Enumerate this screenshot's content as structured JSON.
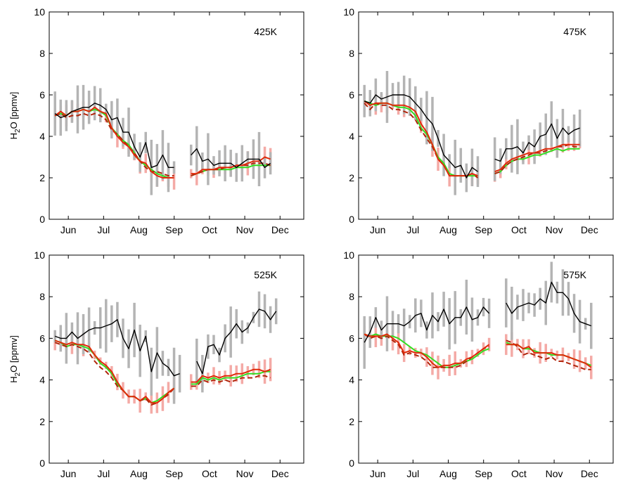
{
  "chart_data": [
    {
      "type": "line",
      "panel_label": "425K",
      "ylabel_main": "H",
      "ylabel_sub": "2",
      "ylabel_rest": "O [ppmv]",
      "x_ticks": [
        "Jun",
        "Jul",
        "Aug",
        "Sep",
        "Oct",
        "Nov",
        "Dec"
      ],
      "xlim": [
        0,
        44
      ],
      "x_tick_pos": [
        6,
        13,
        20,
        27,
        34,
        41,
        48
      ],
      "ylim": [
        0,
        10
      ],
      "y_ticks": [
        "0",
        "2",
        "4",
        "6",
        "8",
        "10"
      ],
      "grid": false,
      "colors": {
        "obs": "#000000",
        "obs_err": "#b4b4b4",
        "model_err": "#f4aaa6",
        "green": "#33dd22",
        "red": "#e02a0a",
        "dashed": "#b0240a"
      },
      "series": [
        {
          "style": "obs",
          "values": [
            5.1,
            4.9,
            5.0,
            5.2,
            5.3,
            5.4,
            5.4,
            5.6,
            5.5,
            5.3,
            4.8,
            4.9,
            4.2,
            4.2,
            3.5,
            3.0,
            3.7,
            2.5,
            2.6,
            3.1,
            2.5,
            2.5,
            null,
            null,
            3.1,
            3.4,
            2.8,
            2.9,
            2.6,
            2.7,
            2.7,
            2.7,
            2.5,
            2.7,
            2.9,
            2.9,
            2.9,
            2.5,
            2.7
          ]
        },
        {
          "style": "green",
          "values": [
            5.0,
            5.1,
            5.0,
            5.2,
            5.2,
            5.3,
            5.2,
            5.3,
            5.2,
            5.0,
            4.4,
            4.1,
            3.8,
            3.6,
            3.2,
            2.8,
            2.6,
            2.4,
            2.2,
            2.1,
            2.0,
            2.0,
            null,
            null,
            2.1,
            2.2,
            2.3,
            2.4,
            2.4,
            2.4,
            2.4,
            2.4,
            2.5,
            2.5,
            2.5,
            2.6,
            2.6,
            2.6,
            2.6
          ]
        },
        {
          "style": "red",
          "values": [
            5.0,
            5.2,
            5.0,
            5.2,
            5.2,
            5.3,
            5.2,
            5.4,
            5.2,
            5.1,
            4.4,
            4.0,
            3.7,
            3.5,
            3.1,
            2.8,
            2.7,
            2.3,
            2.1,
            2.0,
            2.0,
            2.0,
            null,
            null,
            2.2,
            2.2,
            2.4,
            2.4,
            2.4,
            2.5,
            2.5,
            2.5,
            2.6,
            2.6,
            2.7,
            2.8,
            2.8,
            3.0,
            2.9
          ]
        },
        {
          "style": "dashed",
          "values": [
            5.0,
            5.1,
            4.9,
            5.0,
            5.0,
            5.1,
            5.0,
            5.1,
            5.0,
            4.8,
            4.3,
            4.1,
            3.8,
            3.5,
            3.2,
            2.8,
            2.5,
            2.3,
            2.3,
            2.2,
            2.1,
            2.1,
            null,
            null,
            2.1,
            2.2,
            2.3,
            2.4,
            2.4,
            2.4,
            2.5,
            2.5,
            2.6,
            2.6,
            2.6,
            2.7,
            2.7,
            2.7,
            2.6
          ]
        }
      ]
    },
    {
      "type": "line",
      "panel_label": "475K",
      "ylabel_main": "",
      "ylabel_sub": "",
      "ylabel_rest": "",
      "x_ticks": [
        "Jun",
        "Jul",
        "Aug",
        "Sep",
        "Oct",
        "Nov",
        "Dec"
      ],
      "xlim": [
        0,
        44
      ],
      "x_tick_pos": [
        6,
        13,
        20,
        27,
        34,
        41,
        48
      ],
      "ylim": [
        0,
        10
      ],
      "y_ticks": [
        "0",
        "2",
        "4",
        "6",
        "8",
        "10"
      ],
      "grid": false,
      "colors": {
        "obs": "#000000",
        "obs_err": "#b4b4b4",
        "model_err": "#f4aaa6",
        "green": "#33dd22",
        "red": "#e02a0a",
        "dashed": "#b0240a"
      },
      "series": [
        {
          "style": "obs",
          "values": [
            5.7,
            5.6,
            6.0,
            5.8,
            5.9,
            6.0,
            6.0,
            6.0,
            5.9,
            5.6,
            5.3,
            4.9,
            4.6,
            3.9,
            3.1,
            2.8,
            2.5,
            2.6,
            2.0,
            2.5,
            2.3,
            null,
            null,
            2.9,
            2.8,
            3.4,
            3.4,
            3.5,
            3.2,
            3.7,
            3.5,
            4.0,
            4.1,
            4.6,
            3.9,
            4.4,
            4.1,
            4.3,
            4.4
          ]
        },
        {
          "style": "green",
          "values": [
            5.7,
            5.6,
            5.5,
            5.6,
            5.6,
            5.5,
            5.4,
            5.4,
            5.3,
            5.0,
            4.4,
            4.1,
            3.6,
            3.0,
            2.7,
            2.2,
            2.1,
            2.1,
            2.1,
            2.1,
            2.1,
            null,
            null,
            2.2,
            2.3,
            2.6,
            2.8,
            2.9,
            2.9,
            3.0,
            3.1,
            3.1,
            3.2,
            3.3,
            3.4,
            3.3,
            3.4,
            3.4,
            3.4
          ]
        },
        {
          "style": "red",
          "values": [
            5.7,
            5.5,
            5.6,
            5.6,
            5.6,
            5.5,
            5.5,
            5.5,
            5.4,
            5.2,
            4.6,
            4.2,
            3.6,
            2.9,
            2.6,
            2.1,
            2.1,
            2.1,
            2.1,
            2.2,
            2.1,
            null,
            null,
            2.3,
            2.4,
            2.7,
            2.9,
            3.0,
            3.1,
            3.2,
            3.2,
            3.3,
            3.4,
            3.4,
            3.5,
            3.6,
            3.6,
            3.6,
            3.6
          ]
        },
        {
          "style": "dashed",
          "values": [
            5.6,
            5.3,
            5.6,
            5.5,
            5.5,
            5.3,
            5.3,
            5.2,
            5.1,
            4.8,
            4.3,
            3.9,
            3.5,
            2.9,
            2.6,
            2.1,
            2.1,
            2.1,
            2.1,
            2.2,
            2.0,
            null,
            null,
            2.2,
            2.3,
            2.6,
            2.8,
            2.9,
            3.0,
            3.1,
            3.2,
            3.2,
            3.3,
            3.4,
            3.5,
            3.5,
            3.6,
            3.5,
            3.5
          ]
        }
      ]
    },
    {
      "type": "line",
      "panel_label": "525K",
      "ylabel_main": "H",
      "ylabel_sub": "2",
      "ylabel_rest": "O [ppmv]",
      "x_ticks": [
        "Jun",
        "Jul",
        "Aug",
        "Sep",
        "Oct",
        "Nov",
        "Dec"
      ],
      "xlim": [
        0,
        44
      ],
      "x_tick_pos": [
        6,
        13,
        20,
        27,
        34,
        41,
        48
      ],
      "ylim": [
        0,
        10
      ],
      "y_ticks": [
        "0",
        "2",
        "4",
        "6",
        "8",
        "10"
      ],
      "grid": false,
      "colors": {
        "obs": "#000000",
        "obs_err": "#b4b4b4",
        "model_err": "#f4aaa6",
        "green": "#33dd22",
        "red": "#e02a0a",
        "dashed": "#b0240a"
      },
      "series": [
        {
          "style": "obs",
          "values": [
            6.1,
            6.0,
            6.0,
            6.3,
            6.0,
            6.2,
            6.4,
            6.5,
            6.5,
            6.6,
            6.7,
            6.9,
            6.0,
            5.5,
            6.4,
            5.4,
            6.1,
            4.4,
            5.3,
            4.8,
            4.6,
            4.2,
            4.3,
            null,
            null,
            4.9,
            4.3,
            5.6,
            5.7,
            5.2,
            6.0,
            6.3,
            6.7,
            6.3,
            6.5,
            7.0,
            7.4,
            7.3,
            6.9,
            7.3
          ]
        },
        {
          "style": "green",
          "values": [
            5.9,
            5.8,
            5.6,
            5.7,
            5.7,
            5.6,
            5.5,
            5.2,
            4.8,
            4.6,
            4.3,
            3.8,
            3.5,
            3.2,
            3.2,
            3.0,
            3.1,
            2.9,
            3.0,
            3.2,
            3.4,
            3.6,
            null,
            null,
            3.8,
            3.8,
            4.1,
            4.0,
            4.1,
            4.0,
            4.1,
            4.1,
            4.1,
            4.2,
            4.3,
            4.3,
            4.3,
            4.4,
            4.4
          ]
        },
        {
          "style": "red",
          "values": [
            5.9,
            5.8,
            5.7,
            5.8,
            5.7,
            5.7,
            5.6,
            5.2,
            4.9,
            4.7,
            4.4,
            3.9,
            3.5,
            3.2,
            3.2,
            3.0,
            3.2,
            2.9,
            2.9,
            3.1,
            3.4,
            3.6,
            null,
            null,
            3.9,
            3.9,
            4.2,
            4.1,
            4.2,
            4.1,
            4.2,
            4.2,
            4.3,
            4.3,
            4.4,
            4.5,
            4.5,
            4.4,
            4.5
          ]
        },
        {
          "style": "dashed",
          "values": [
            5.8,
            5.7,
            5.6,
            5.7,
            5.6,
            5.5,
            5.3,
            4.9,
            4.6,
            4.4,
            4.1,
            3.7,
            3.5,
            3.2,
            3.2,
            3.0,
            3.1,
            2.8,
            2.9,
            3.1,
            3.3,
            3.6,
            null,
            null,
            3.7,
            3.7,
            4.0,
            3.9,
            4.0,
            3.9,
            4.0,
            3.9,
            4.0,
            4.1,
            4.1,
            4.1,
            4.2,
            4.2,
            4.1
          ]
        }
      ]
    },
    {
      "type": "line",
      "panel_label": "575K",
      "ylabel_main": "",
      "ylabel_sub": "",
      "ylabel_rest": "",
      "x_ticks": [
        "Jun",
        "Jul",
        "Aug",
        "Sep",
        "Oct",
        "Nov",
        "Dec"
      ],
      "xlim": [
        0,
        44
      ],
      "x_tick_pos": [
        6,
        13,
        20,
        27,
        34,
        41,
        48
      ],
      "ylim": [
        0,
        10
      ],
      "y_ticks": [
        "0",
        "2",
        "4",
        "6",
        "8",
        "10"
      ],
      "grid": false,
      "colors": {
        "obs": "#000000",
        "obs_err": "#b4b4b4",
        "model_err": "#f4aaa6",
        "green": "#33dd22",
        "red": "#e02a0a",
        "dashed": "#b0240a"
      },
      "series": [
        {
          "style": "obs",
          "values": [
            5.8,
            6.3,
            7.0,
            6.4,
            6.7,
            6.7,
            6.7,
            6.6,
            6.8,
            7.1,
            7.2,
            6.4,
            7.1,
            6.8,
            7.4,
            6.7,
            7.0,
            7.0,
            7.5,
            6.9,
            7.0,
            7.5,
            7.2,
            null,
            null,
            7.7,
            7.2,
            7.5,
            7.6,
            7.7,
            7.6,
            7.9,
            7.7,
            8.7,
            8.2,
            8.2,
            7.9,
            7.2,
            6.8,
            6.7,
            6.6
          ]
        },
        {
          "style": "green",
          "values": [
            6.2,
            6.1,
            6.2,
            6.1,
            6.1,
            6.1,
            6.0,
            5.8,
            5.6,
            5.4,
            5.3,
            5.2,
            5.0,
            4.8,
            4.6,
            4.6,
            4.7,
            4.8,
            4.9,
            5.0,
            5.2,
            5.4,
            5.5,
            null,
            null,
            5.8,
            5.7,
            5.7,
            5.5,
            5.5,
            5.4,
            5.3,
            5.3,
            5.2,
            5.2,
            5.2,
            5.1,
            5.0,
            4.9,
            4.8,
            4.7
          ]
        },
        {
          "style": "red",
          "values": [
            6.2,
            6.1,
            6.1,
            6.1,
            6.2,
            6.0,
            5.8,
            5.3,
            5.4,
            5.3,
            5.3,
            5.1,
            4.8,
            4.6,
            4.7,
            4.7,
            4.8,
            4.8,
            5.0,
            5.1,
            5.3,
            5.5,
            5.7,
            null,
            null,
            5.7,
            5.7,
            5.7,
            5.5,
            5.6,
            5.3,
            5.3,
            5.3,
            5.3,
            5.2,
            5.2,
            5.1,
            5.0,
            4.9,
            4.8,
            4.6
          ]
        },
        {
          "style": "dashed",
          "values": [
            6.2,
            6.0,
            6.1,
            6.0,
            6.1,
            5.9,
            5.7,
            5.2,
            5.3,
            5.2,
            5.1,
            4.9,
            4.6,
            4.6,
            4.6,
            4.6,
            4.6,
            4.7,
            4.9,
            5.1,
            5.3,
            5.5,
            5.6,
            null,
            null,
            5.9,
            5.8,
            5.6,
            5.2,
            5.3,
            5.2,
            5.1,
            5.0,
            5.1,
            4.9,
            4.9,
            4.8,
            4.7,
            4.6,
            4.5,
            4.5
          ]
        }
      ]
    }
  ]
}
